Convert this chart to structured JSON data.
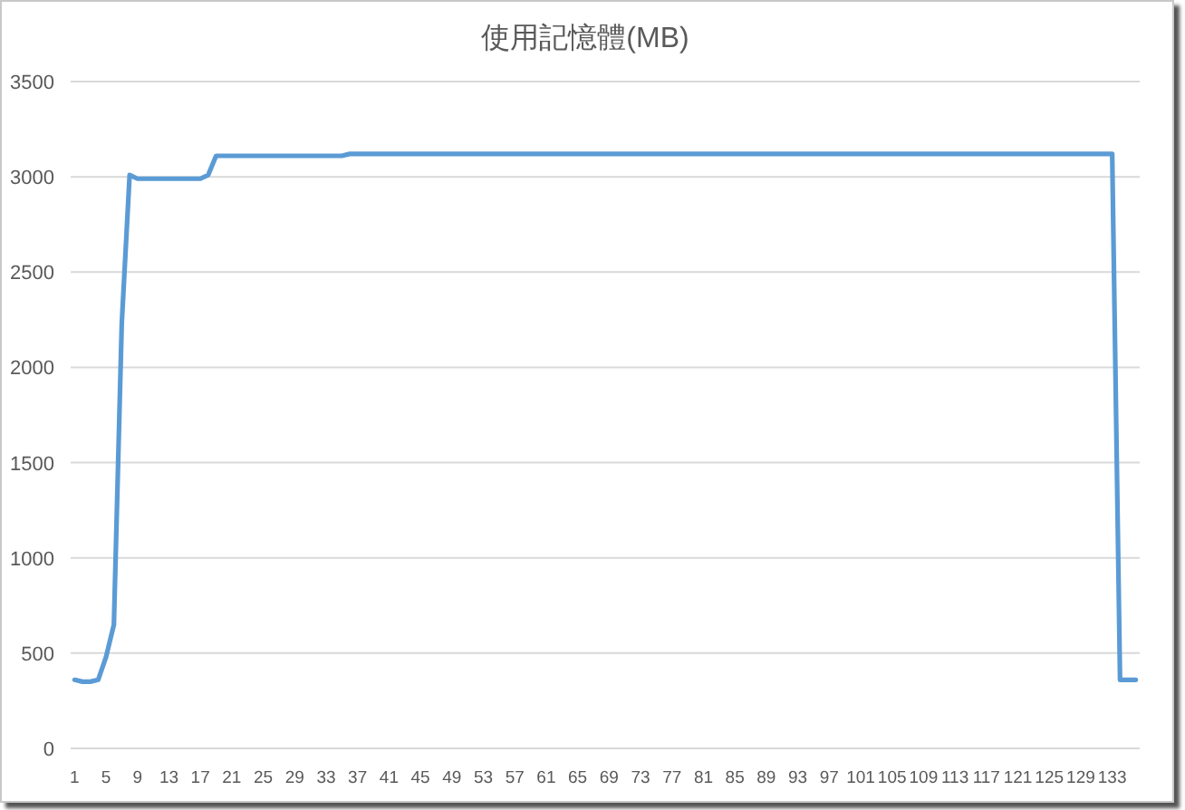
{
  "chart_data": {
    "type": "line",
    "title": "使用記憶體(MB)",
    "categories": [
      "1",
      null,
      null,
      null,
      "5",
      null,
      null,
      null,
      "9",
      null,
      null,
      null,
      "13",
      null,
      null,
      null,
      "17",
      null,
      null,
      null,
      "21",
      null,
      null,
      null,
      "25",
      null,
      null,
      null,
      "29",
      null,
      null,
      null,
      "33",
      null,
      null,
      null,
      "37",
      null,
      null,
      null,
      "41",
      null,
      null,
      null,
      "45",
      null,
      null,
      null,
      "49",
      null,
      null,
      null,
      "53",
      null,
      null,
      null,
      "57",
      null,
      null,
      null,
      "61",
      null,
      null,
      null,
      "65",
      null,
      null,
      null,
      "69",
      null,
      null,
      null,
      "73",
      null,
      null,
      null,
      "77",
      null,
      null,
      null,
      "81",
      null,
      null,
      null,
      "85",
      null,
      null,
      null,
      "89",
      null,
      null,
      null,
      "93",
      null,
      null,
      null,
      "97",
      null,
      null,
      null,
      "101",
      null,
      null,
      null,
      "105",
      null,
      null,
      null,
      "109",
      null,
      null,
      null,
      "113",
      null,
      null,
      null,
      "117",
      null,
      null,
      null,
      "121",
      null,
      null,
      null,
      "125",
      null,
      null,
      null,
      "129",
      null,
      null,
      null,
      "133",
      null,
      null,
      null
    ],
    "series": [
      {
        "color": "#5b9bd5",
        "values": [
          360,
          350,
          350,
          360,
          480,
          650,
          2230,
          3010,
          2990,
          2990,
          2990,
          2990,
          2990,
          2990,
          2990,
          2990,
          2990,
          3010,
          3110,
          3110,
          3110,
          3110,
          3110,
          3110,
          3110,
          3110,
          3110,
          3110,
          3110,
          3110,
          3110,
          3110,
          3110,
          3110,
          3110,
          3120,
          3120,
          3120,
          3120,
          3120,
          3120,
          3120,
          3120,
          3120,
          3120,
          3120,
          3120,
          3120,
          3120,
          3120,
          3120,
          3120,
          3120,
          3120,
          3120,
          3120,
          3120,
          3120,
          3120,
          3120,
          3120,
          3120,
          3120,
          3120,
          3120,
          3120,
          3120,
          3120,
          3120,
          3120,
          3120,
          3120,
          3120,
          3120,
          3120,
          3120,
          3120,
          3120,
          3120,
          3120,
          3120,
          3120,
          3120,
          3120,
          3120,
          3120,
          3120,
          3120,
          3120,
          3120,
          3120,
          3120,
          3120,
          3120,
          3120,
          3120,
          3120,
          3120,
          3120,
          3120,
          3120,
          3120,
          3120,
          3120,
          3120,
          3120,
          3120,
          3120,
          3120,
          3120,
          3120,
          3120,
          3120,
          3120,
          3120,
          3120,
          3120,
          3120,
          3120,
          3120,
          3120,
          3120,
          3120,
          3120,
          3120,
          3120,
          3120,
          3120,
          3120,
          3120,
          3120,
          3120,
          3120,
          360,
          360,
          360
        ]
      }
    ],
    "ylim": [
      0,
      3500
    ],
    "yticks": [
      0,
      500,
      1000,
      1500,
      2000,
      2500,
      3000,
      3500
    ],
    "grid": "y"
  }
}
